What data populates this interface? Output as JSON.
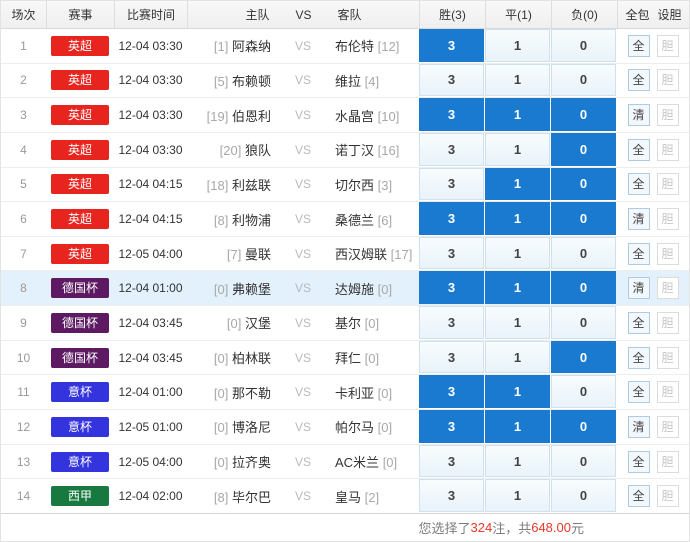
{
  "table_header": {
    "match_no": "场次",
    "league": "赛事",
    "time": "比赛时间",
    "home": "主队",
    "vs": "VS",
    "away": "客队",
    "win": "胜(3)",
    "draw": "平(1)",
    "lose": "负(0)",
    "all_pack": "全包",
    "set_dan": "设胆"
  },
  "odds_values": {
    "win": "3",
    "draw": "1",
    "lose": "0"
  },
  "labels": {
    "vs": "VS",
    "dan": "胆",
    "all": "全",
    "clear": "清"
  },
  "colors": {
    "selected_blue": "#1a7ad0",
    "league_yingchao": "#e8241f",
    "league_deguobei": "#5d1a62",
    "league_yibei": "#3434de",
    "league_xijia": "#17793f",
    "row_highlight": "#e2f1fb",
    "footer_red": "#e8392a"
  },
  "rows": [
    {
      "no": "1",
      "league": "英超",
      "color": "#e8241f",
      "time": "12-04 03:30",
      "home_rank": "[1]",
      "home": "阿森纳",
      "away": "布伦特",
      "away_rank": "[12]",
      "sel": [
        1,
        0,
        0
      ],
      "action": "全",
      "highlight": false
    },
    {
      "no": "2",
      "league": "英超",
      "color": "#e8241f",
      "time": "12-04 03:30",
      "home_rank": "[5]",
      "home": "布赖顿",
      "away": "维拉",
      "away_rank": "[4]",
      "sel": [
        0,
        0,
        0
      ],
      "action": "全",
      "highlight": false
    },
    {
      "no": "3",
      "league": "英超",
      "color": "#e8241f",
      "time": "12-04 03:30",
      "home_rank": "[19]",
      "home": "伯恩利",
      "away": "水晶宫",
      "away_rank": "[10]",
      "sel": [
        1,
        1,
        1
      ],
      "action": "清",
      "highlight": false
    },
    {
      "no": "4",
      "league": "英超",
      "color": "#e8241f",
      "time": "12-04 03:30",
      "home_rank": "[20]",
      "home": "狼队",
      "away": "诺丁汉",
      "away_rank": "[16]",
      "sel": [
        0,
        0,
        1
      ],
      "action": "全",
      "highlight": false
    },
    {
      "no": "5",
      "league": "英超",
      "color": "#e8241f",
      "time": "12-04 04:15",
      "home_rank": "[18]",
      "home": "利兹联",
      "away": "切尔西",
      "away_rank": "[3]",
      "sel": [
        0,
        1,
        1
      ],
      "action": "全",
      "highlight": false
    },
    {
      "no": "6",
      "league": "英超",
      "color": "#e8241f",
      "time": "12-04 04:15",
      "home_rank": "[8]",
      "home": "利物浦",
      "away": "桑德兰",
      "away_rank": "[6]",
      "sel": [
        1,
        1,
        1
      ],
      "action": "清",
      "highlight": false
    },
    {
      "no": "7",
      "league": "英超",
      "color": "#e8241f",
      "time": "12-05 04:00",
      "home_rank": "[7]",
      "home": "曼联",
      "away": "西汉姆联",
      "away_rank": "[17]",
      "sel": [
        0,
        0,
        0
      ],
      "action": "全",
      "highlight": false
    },
    {
      "no": "8",
      "league": "德国杯",
      "color": "#5d1a62",
      "time": "12-04 01:00",
      "home_rank": "[0]",
      "home": "弗赖堡",
      "away": "达姆施",
      "away_rank": "[0]",
      "sel": [
        1,
        1,
        1
      ],
      "action": "清",
      "highlight": true
    },
    {
      "no": "9",
      "league": "德国杯",
      "color": "#5d1a62",
      "time": "12-04 03:45",
      "home_rank": "[0]",
      "home": "汉堡",
      "away": "基尔",
      "away_rank": "[0]",
      "sel": [
        0,
        0,
        0
      ],
      "action": "全",
      "highlight": false
    },
    {
      "no": "10",
      "league": "德国杯",
      "color": "#5d1a62",
      "time": "12-04 03:45",
      "home_rank": "[0]",
      "home": "柏林联",
      "away": "拜仁",
      "away_rank": "[0]",
      "sel": [
        0,
        0,
        1
      ],
      "action": "全",
      "highlight": false
    },
    {
      "no": "11",
      "league": "意杯",
      "color": "#3434de",
      "time": "12-04 01:00",
      "home_rank": "[0]",
      "home": "那不勒",
      "away": "卡利亚",
      "away_rank": "[0]",
      "sel": [
        1,
        1,
        0
      ],
      "action": "全",
      "highlight": false
    },
    {
      "no": "12",
      "league": "意杯",
      "color": "#3434de",
      "time": "12-05 01:00",
      "home_rank": "[0]",
      "home": "博洛尼",
      "away": "帕尔马",
      "away_rank": "[0]",
      "sel": [
        1,
        1,
        1
      ],
      "action": "清",
      "highlight": false
    },
    {
      "no": "13",
      "league": "意杯",
      "color": "#3434de",
      "time": "12-05 04:00",
      "home_rank": "[0]",
      "home": "拉齐奥",
      "away": "AC米兰",
      "away_rank": "[0]",
      "sel": [
        0,
        0,
        0
      ],
      "action": "全",
      "highlight": false
    },
    {
      "no": "14",
      "league": "西甲",
      "color": "#17793f",
      "time": "12-04 02:00",
      "home_rank": "[8]",
      "home": "毕尔巴",
      "away": "皇马",
      "away_rank": "[2]",
      "sel": [
        0,
        0,
        0
      ],
      "action": "全",
      "highlight": false
    }
  ],
  "footer": {
    "prefix": "您选择了 ",
    "count": "324",
    "mid": " 注，共 ",
    "amount": "648.00",
    "unit": "元"
  }
}
